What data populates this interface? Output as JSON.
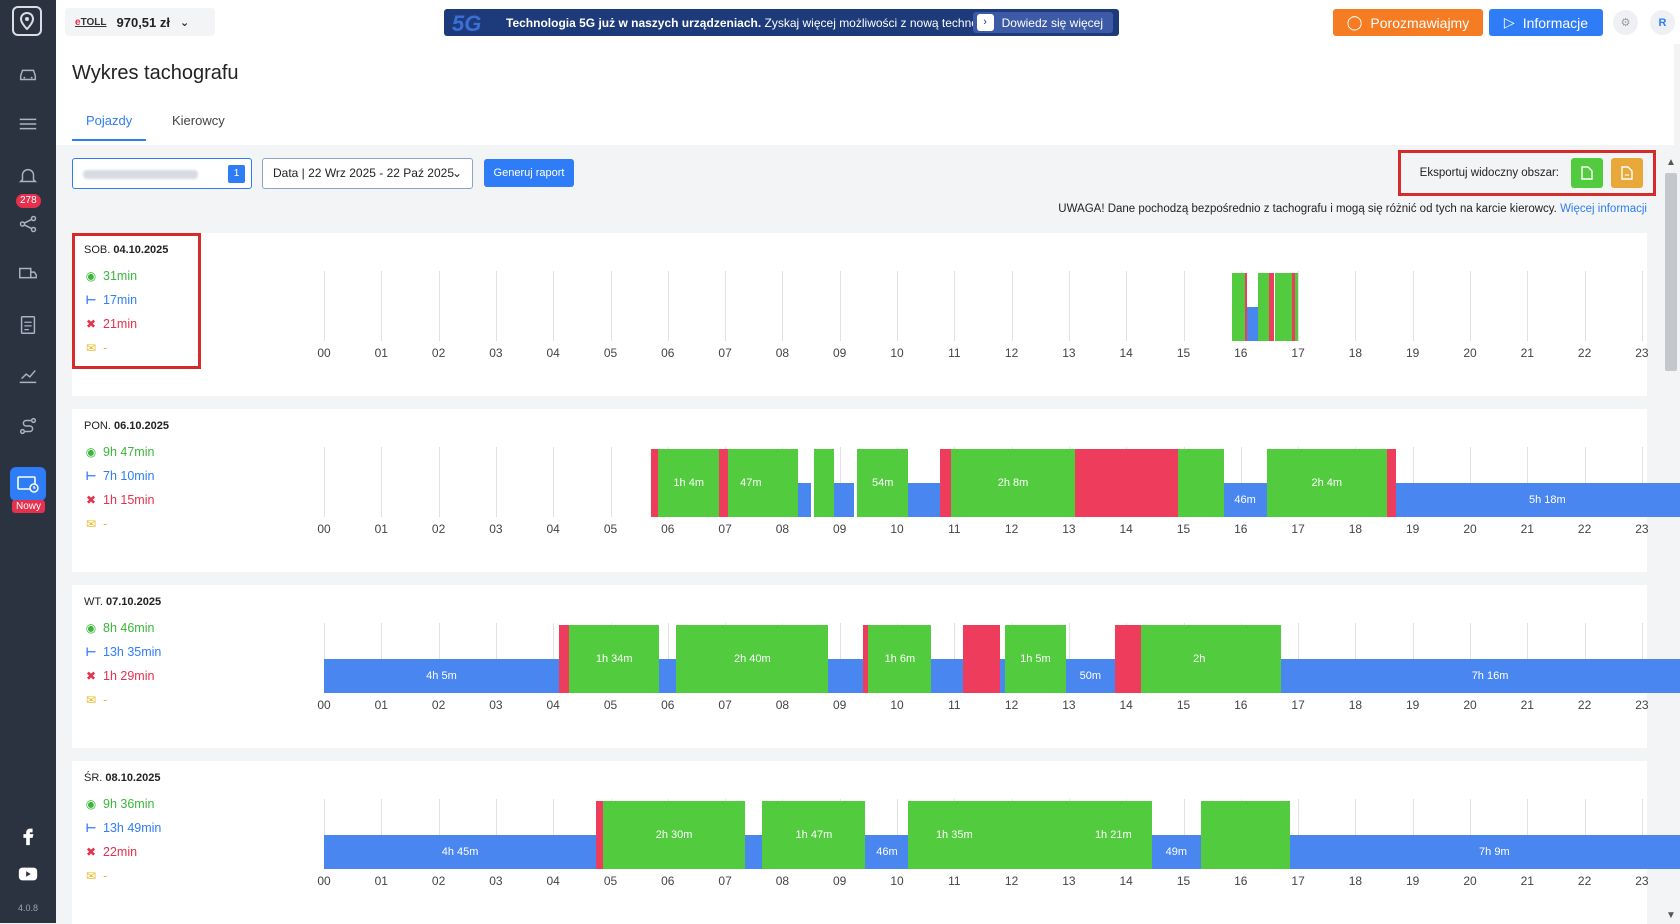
{
  "sidebar": {
    "badge": "278",
    "new_label": "Nowy",
    "version": "4.0.8",
    "icons": [
      "map-pin-icon",
      "car-icon",
      "list-truck-icon",
      "bell-icon",
      "share-icon",
      "truck-check-icon",
      "document-icon",
      "chart-icon",
      "route-icon",
      "tachograph-icon",
      "facebook-icon",
      "youtube-icon"
    ]
  },
  "topbar": {
    "etoll_brand_e": "e",
    "etoll_brand_rest": "TOLL",
    "balance": "970,51 zł",
    "promo_badge": "5G",
    "promo_text_bold": "Technologia 5G już w naszych urządzeniach.",
    "promo_text": " Zyskaj więcej możliwości z nową technologią!",
    "promo_more": "Dowiedz się więcej",
    "chat_label": "Porozmawiajmy",
    "info_label": "Informacje",
    "avatar_initial": "R"
  },
  "page": {
    "title": "Wykres tachografu",
    "tabs": [
      "Pojazdy",
      "Kierowcy"
    ],
    "active_tab": "Pojazdy"
  },
  "filters": {
    "vehicle_count": "1",
    "date_label": "Data | 22 Wrz 2025 - 22 Paź 2025",
    "generate_label": "Generuj raport",
    "export_label": "Eksportuj widoczny obszar:"
  },
  "warning": {
    "text": "UWAGA! Dane pochodzą bezpośrednio z tachografu i mogą się różnić od tych na karcie kierowcy.",
    "link": "Więcej informacji"
  },
  "colors": {
    "drive": "#52cc3e",
    "rest": "#4a86f0",
    "work": "#ee3c5c",
    "availability": "#e8b51f",
    "accent": "#2f7df6"
  },
  "hours": [
    "00",
    "01",
    "02",
    "03",
    "04",
    "05",
    "06",
    "07",
    "08",
    "09",
    "10",
    "11",
    "12",
    "13",
    "14",
    "15",
    "16",
    "17",
    "18",
    "19",
    "20",
    "21",
    "22",
    "23"
  ],
  "days": [
    {
      "day": "SOB.",
      "date": "04.10.2025",
      "drive": "31min",
      "rest": "17min",
      "work": "21min",
      "availability": "-",
      "segments": [
        {
          "s": 15.85,
          "e": 16.08,
          "t": "drive",
          "l": ""
        },
        {
          "s": 16.08,
          "e": 16.1,
          "t": "work",
          "l": ""
        },
        {
          "s": 16.1,
          "e": 16.3,
          "t": "rest",
          "l": ""
        },
        {
          "s": 16.3,
          "e": 16.5,
          "t": "drive",
          "l": ""
        },
        {
          "s": 16.5,
          "e": 16.58,
          "t": "work",
          "l": ""
        },
        {
          "s": 16.6,
          "e": 16.9,
          "t": "drive",
          "l": ""
        },
        {
          "s": 16.9,
          "e": 16.95,
          "t": "work",
          "l": ""
        },
        {
          "s": 16.95,
          "e": 17.0,
          "t": "drive",
          "l": ""
        }
      ]
    },
    {
      "day": "PON.",
      "date": "06.10.2025",
      "drive": "9h 47min",
      "rest": "7h 10min",
      "work": "1h 15min",
      "availability": "-",
      "segments": [
        {
          "s": 5.7,
          "e": 5.83,
          "t": "work",
          "l": ""
        },
        {
          "s": 5.83,
          "e": 6.9,
          "t": "drive",
          "l": "1h 4m"
        },
        {
          "s": 6.9,
          "e": 7.05,
          "t": "work",
          "l": ""
        },
        {
          "s": 7.05,
          "e": 7.85,
          "t": "drive",
          "l": "47m"
        },
        {
          "s": 7.85,
          "e": 8.27,
          "t": "drive",
          "l": ""
        },
        {
          "s": 8.27,
          "e": 8.5,
          "t": "rest",
          "l": ""
        },
        {
          "s": 8.55,
          "e": 8.9,
          "t": "drive",
          "l": ""
        },
        {
          "s": 8.9,
          "e": 9.25,
          "t": "rest",
          "l": ""
        },
        {
          "s": 9.3,
          "e": 10.2,
          "t": "drive",
          "l": "54m"
        },
        {
          "s": 10.2,
          "e": 10.75,
          "t": "rest",
          "l": ""
        },
        {
          "s": 10.75,
          "e": 10.95,
          "t": "work",
          "l": ""
        },
        {
          "s": 10.95,
          "e": 13.1,
          "t": "drive",
          "l": "2h 8m"
        },
        {
          "s": 13.1,
          "e": 14.9,
          "t": "work",
          "l": ""
        },
        {
          "s": 14.9,
          "e": 15.7,
          "t": "drive",
          "l": ""
        },
        {
          "s": 15.7,
          "e": 16.45,
          "t": "rest",
          "l": "46m"
        },
        {
          "s": 16.45,
          "e": 18.55,
          "t": "drive",
          "l": "2h 4m"
        },
        {
          "s": 18.55,
          "e": 18.7,
          "t": "work",
          "l": ""
        },
        {
          "s": 18.7,
          "e": 24.0,
          "t": "rest",
          "l": "5h 18m"
        }
      ]
    },
    {
      "day": "WT.",
      "date": "07.10.2025",
      "drive": "8h 46min",
      "rest": "13h 35min",
      "work": "1h 29min",
      "availability": "-",
      "segments": [
        {
          "s": 0.0,
          "e": 4.1,
          "t": "rest",
          "l": "4h 5m"
        },
        {
          "s": 4.1,
          "e": 4.28,
          "t": "work",
          "l": ""
        },
        {
          "s": 4.28,
          "e": 5.85,
          "t": "drive",
          "l": "1h 34m"
        },
        {
          "s": 5.85,
          "e": 6.15,
          "t": "rest",
          "l": ""
        },
        {
          "s": 6.15,
          "e": 8.8,
          "t": "drive",
          "l": "2h 40m"
        },
        {
          "s": 8.8,
          "e": 9.4,
          "t": "rest",
          "l": ""
        },
        {
          "s": 9.4,
          "e": 9.5,
          "t": "work",
          "l": ""
        },
        {
          "s": 9.5,
          "e": 10.6,
          "t": "drive",
          "l": "1h 6m"
        },
        {
          "s": 10.6,
          "e": 10.85,
          "t": "rest",
          "l": ""
        },
        {
          "s": 10.85,
          "e": 11.15,
          "t": "rest",
          "l": ""
        },
        {
          "s": 11.15,
          "e": 11.8,
          "t": "work",
          "l": ""
        },
        {
          "s": 11.8,
          "e": 11.88,
          "t": "rest",
          "l": ""
        },
        {
          "s": 11.88,
          "e": 12.95,
          "t": "drive",
          "l": "1h 5m"
        },
        {
          "s": 12.95,
          "e": 13.8,
          "t": "rest",
          "l": "50m"
        },
        {
          "s": 13.8,
          "e": 14.25,
          "t": "work",
          "l": ""
        },
        {
          "s": 14.25,
          "e": 16.3,
          "t": "drive",
          "l": "2h"
        },
        {
          "s": 16.3,
          "e": 16.7,
          "t": "drive",
          "l": ""
        },
        {
          "s": 16.7,
          "e": 24.0,
          "t": "rest",
          "l": "7h 16m"
        }
      ]
    },
    {
      "day": "ŚR.",
      "date": "08.10.2025",
      "drive": "9h 36min",
      "rest": "13h 49min",
      "work": "22min",
      "availability": "-",
      "segments": [
        {
          "s": 0.0,
          "e": 4.75,
          "t": "rest",
          "l": "4h 45m"
        },
        {
          "s": 4.75,
          "e": 4.87,
          "t": "work",
          "l": ""
        },
        {
          "s": 4.87,
          "e": 7.35,
          "t": "drive",
          "l": "2h 30m"
        },
        {
          "s": 7.35,
          "e": 7.65,
          "t": "rest",
          "l": ""
        },
        {
          "s": 7.65,
          "e": 9.45,
          "t": "drive",
          "l": "1h 47m"
        },
        {
          "s": 9.45,
          "e": 10.2,
          "t": "rest",
          "l": "46m"
        },
        {
          "s": 10.2,
          "e": 11.8,
          "t": "drive",
          "l": "1h 35m"
        },
        {
          "s": 11.8,
          "e": 12.2,
          "t": "drive",
          "l": ""
        },
        {
          "s": 12.2,
          "e": 13.1,
          "t": "drive",
          "l": ""
        },
        {
          "s": 13.1,
          "e": 14.45,
          "t": "drive",
          "l": "1h 21m"
        },
        {
          "s": 14.45,
          "e": 15.3,
          "t": "rest",
          "l": "49m"
        },
        {
          "s": 15.3,
          "e": 16.85,
          "t": "drive",
          "l": ""
        },
        {
          "s": 16.85,
          "e": 24.0,
          "t": "rest",
          "l": "7h 9m"
        }
      ]
    }
  ]
}
